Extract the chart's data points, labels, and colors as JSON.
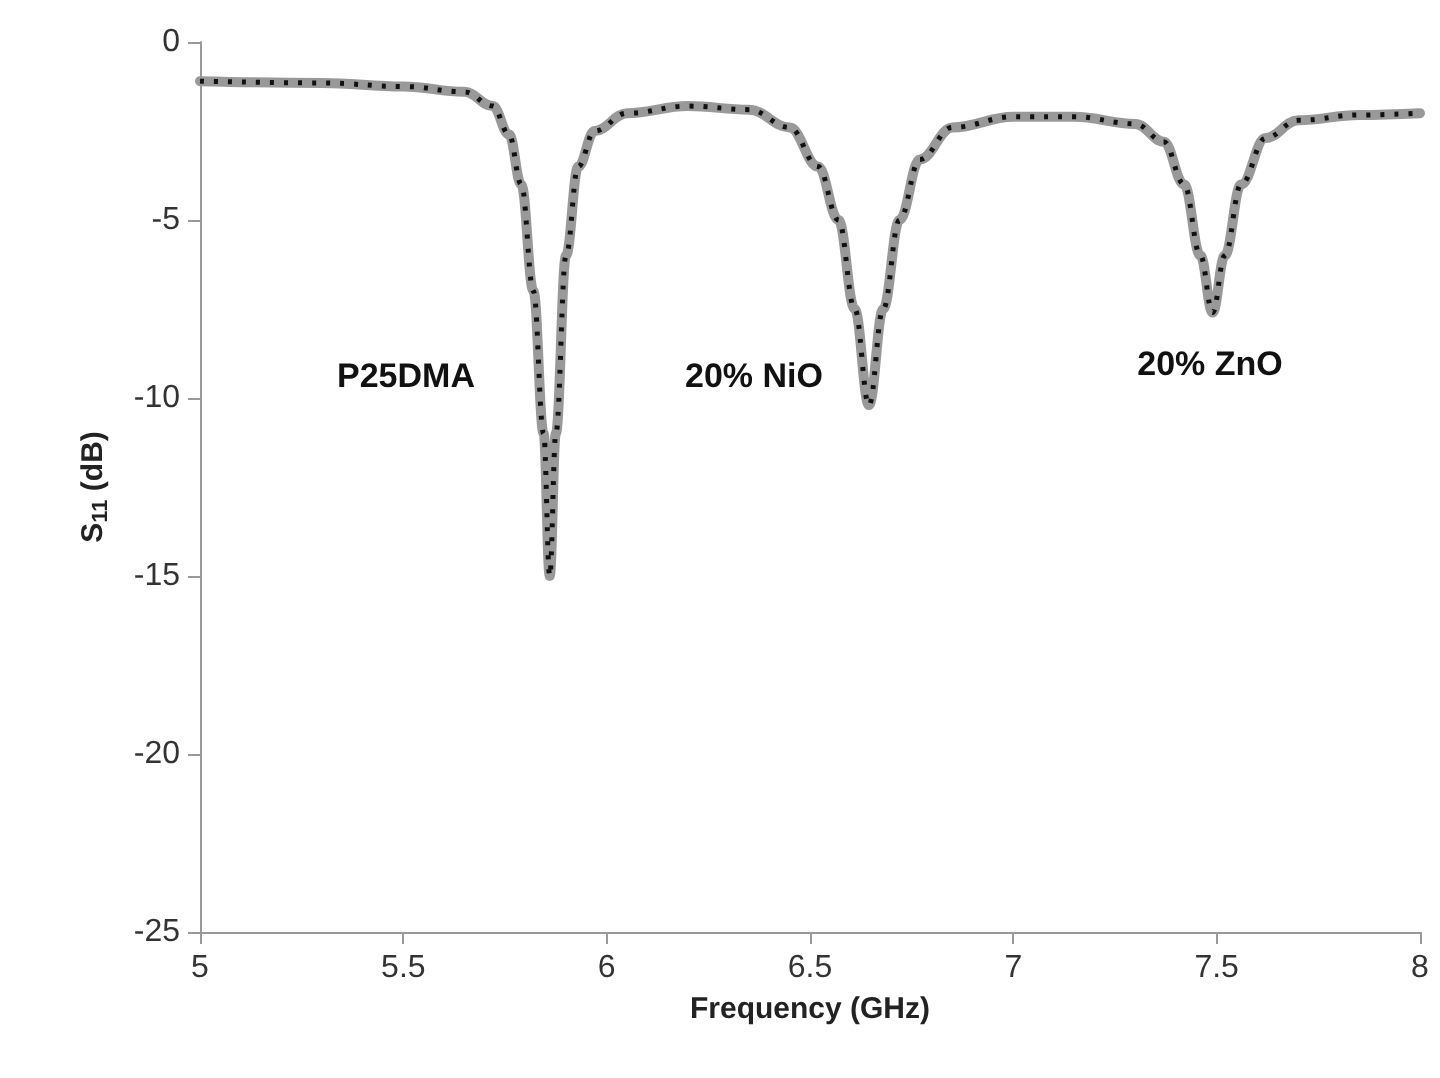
{
  "chart_data": {
    "type": "line",
    "xlabel": "Frequency (GHz)",
    "ylabel": "S$_{11}$ (dB)",
    "xlim": [
      5,
      8
    ],
    "xticks": [
      5,
      5.5,
      6,
      6.5,
      7,
      7.5,
      8
    ],
    "ylim": [
      -25,
      0
    ],
    "yticks": [
      -25,
      -20,
      -15,
      -10,
      -5,
      0
    ],
    "grid": false,
    "marker": "none",
    "x": [
      5.0,
      5.3,
      5.5,
      5.65,
      5.72,
      5.76,
      5.79,
      5.82,
      5.845,
      5.86,
      5.875,
      5.9,
      5.93,
      5.97,
      6.05,
      6.2,
      6.35,
      6.45,
      6.52,
      6.57,
      6.61,
      6.645,
      6.68,
      6.72,
      6.77,
      6.85,
      7.0,
      7.15,
      7.3,
      7.37,
      7.42,
      7.46,
      7.49,
      7.52,
      7.56,
      7.62,
      7.7,
      7.85,
      8.0
    ],
    "series": [
      {
        "color": "#999999",
        "line_style": "solid",
        "values": [
          -1.1,
          -1.15,
          -1.25,
          -1.4,
          -1.8,
          -2.6,
          -4,
          -7,
          -11,
          -15,
          -11,
          -6,
          -3.5,
          -2.5,
          -2.0,
          -1.8,
          -1.9,
          -2.4,
          -3.5,
          -5,
          -7.5,
          -10.2,
          -7.5,
          -5,
          -3.3,
          -2.4,
          -2.1,
          -2.1,
          -2.3,
          -2.8,
          -4,
          -6,
          -7.6,
          -6,
          -4,
          -2.7,
          -2.2,
          -2.05,
          -2.0
        ]
      },
      {
        "color": "#111111",
        "line_style": "dotted",
        "values": [
          -1.1,
          -1.15,
          -1.25,
          -1.4,
          -1.8,
          -2.6,
          -4,
          -7,
          -11,
          -15,
          -11,
          -6,
          -3.5,
          -2.5,
          -2.0,
          -1.8,
          -1.9,
          -2.4,
          -3.5,
          -5,
          -7.5,
          -10.2,
          -7.5,
          -5,
          -3.3,
          -2.4,
          -2.1,
          -2.1,
          -2.3,
          -2.8,
          -4,
          -6,
          -7.6,
          -6,
          -4,
          -2.7,
          -2.2,
          -2.05,
          -2.0
        ]
      }
    ],
    "annotations": [
      "P25DMA",
      "20% NiO",
      "20% ZnO"
    ]
  }
}
